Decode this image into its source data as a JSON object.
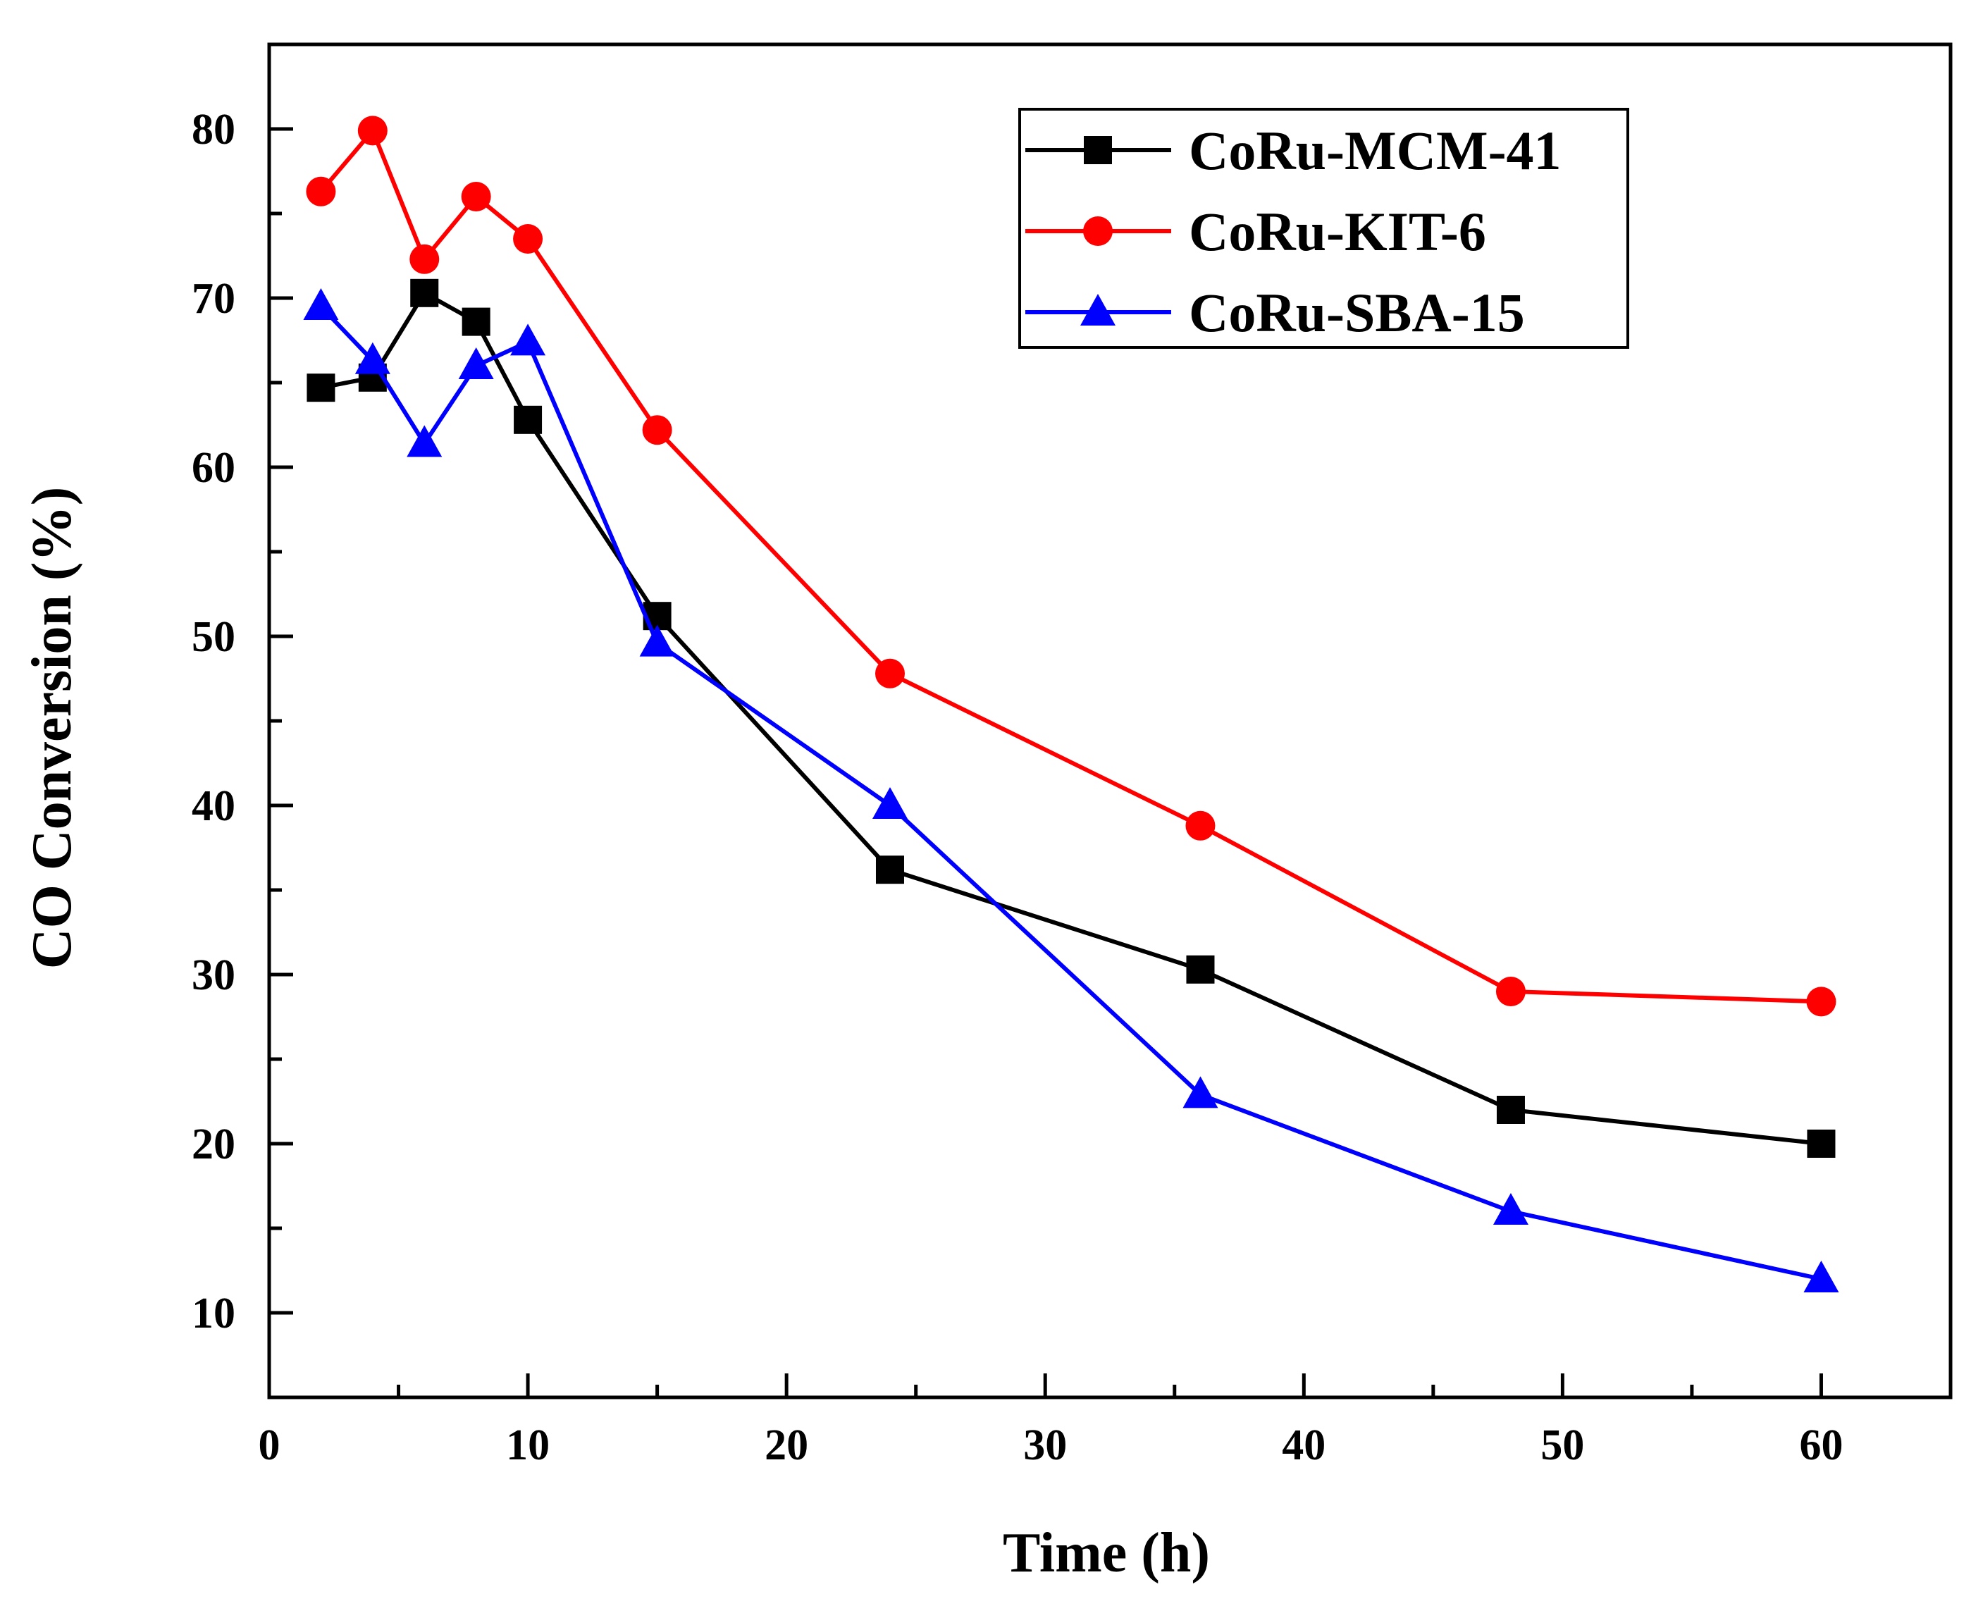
{
  "chart_data": {
    "type": "line",
    "title": "",
    "xlabel": "Time (h)",
    "ylabel": "CO Conversion (%)",
    "xlim": [
      0,
      65
    ],
    "ylim": [
      5,
      85
    ],
    "xticks": [
      0,
      10,
      20,
      30,
      40,
      50,
      60
    ],
    "yticks": [
      10,
      20,
      30,
      40,
      50,
      60,
      70,
      80
    ],
    "xtick_labels": [
      "0",
      "10",
      "20",
      "30",
      "40",
      "50",
      "60"
    ],
    "ytick_labels": [
      "10",
      "20",
      "30",
      "40",
      "50",
      "60",
      "70",
      "80"
    ],
    "grid": false,
    "legend_position": "top-right",
    "series": [
      {
        "name": "CoRu-MCM-41",
        "color": "#000000",
        "marker": "square",
        "x": [
          2,
          4,
          6,
          8,
          10,
          15,
          24,
          36,
          48,
          60
        ],
        "y": [
          64.7,
          65.3,
          70.3,
          68.6,
          62.8,
          51.2,
          36.2,
          30.3,
          22.0,
          20.0
        ]
      },
      {
        "name": "CoRu-KIT-6",
        "color": "#ff0000",
        "marker": "circle",
        "x": [
          2,
          4,
          6,
          8,
          10,
          15,
          24,
          36,
          48,
          60
        ],
        "y": [
          76.3,
          79.9,
          72.3,
          76.0,
          73.5,
          62.2,
          47.8,
          38.8,
          29.0,
          28.4
        ]
      },
      {
        "name": "CoRu-SBA-15",
        "color": "#0000ff",
        "marker": "triangle",
        "x": [
          2,
          4,
          6,
          8,
          10,
          15,
          24,
          36,
          48,
          60
        ],
        "y": [
          69.5,
          66.3,
          61.4,
          66.0,
          67.4,
          49.6,
          40.0,
          22.9,
          16.0,
          12.0
        ]
      }
    ]
  }
}
